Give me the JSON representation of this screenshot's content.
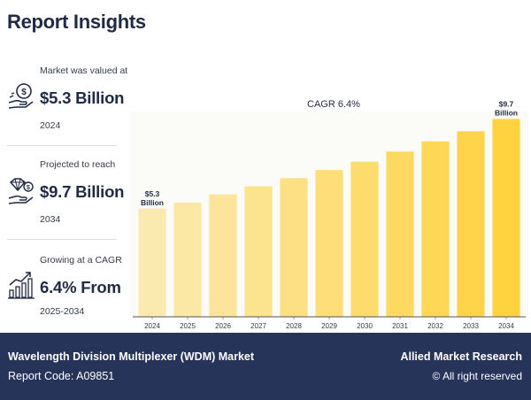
{
  "header": {
    "title": "Report Insights"
  },
  "stats": [
    {
      "label": "Market was valued at",
      "value": "$5.3 Billion",
      "year": "2024",
      "icon": "money-hand-icon"
    },
    {
      "label": "Projected to reach",
      "value": "$9.7 Billion",
      "year": "2034",
      "icon": "diamond-hand-icon"
    },
    {
      "label": "Growing at a CAGR",
      "value": "6.4% From",
      "year": "2025-2034",
      "icon": "growth-chart-icon"
    }
  ],
  "chart_data": {
    "type": "bar",
    "title": "",
    "annotation": "CAGR 6.4%",
    "categories": [
      "2024",
      "2025",
      "2026",
      "2027",
      "2028",
      "2029",
      "2030",
      "2031",
      "2032",
      "2033",
      "2034"
    ],
    "values": [
      5.3,
      5.6,
      6.0,
      6.4,
      6.8,
      7.2,
      7.6,
      8.1,
      8.6,
      9.1,
      9.7
    ],
    "data_labels": [
      {
        "index": 0,
        "lines": [
          "$5.3",
          "Billion"
        ]
      },
      {
        "index": 10,
        "lines": [
          "$9.7",
          "Billion"
        ]
      }
    ],
    "xlabel": "",
    "ylabel": "",
    "ylim": [
      0,
      10.5
    ],
    "grid": false,
    "colors": [
      "#fbeab0",
      "#ffd240"
    ]
  },
  "footer": {
    "title": "Wavelength Division Multiplexer (WDM) Market",
    "report_code": "Report Code: A09851",
    "brand": "Allied Market Research",
    "rights": "© All right reserved"
  }
}
